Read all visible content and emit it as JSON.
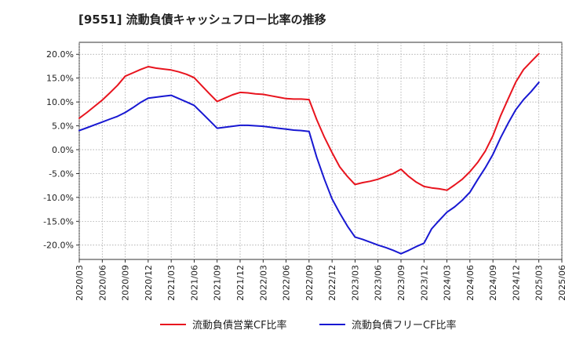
{
  "chart_data": {
    "type": "line",
    "title": "[9551]  流動負債キャッシュフロー比率の推移",
    "xlabel": "",
    "ylabel": "",
    "ylim": [
      -23,
      22.5
    ],
    "yticks": [
      20,
      15,
      10,
      5,
      0,
      -5,
      -10,
      -15,
      -20
    ],
    "ytick_labels": [
      "20.0%",
      "15.0%",
      "10.0%",
      "5.0%",
      "0.0%",
      "-5.0%",
      "-10.0%",
      "-15.0%",
      "-20.0%"
    ],
    "x_tick_labels": [
      "2020/03",
      "2020/06",
      "2020/09",
      "2020/12",
      "2021/03",
      "2021/06",
      "2021/09",
      "2021/12",
      "2022/03",
      "2022/06",
      "2022/09",
      "2022/12",
      "2023/03",
      "2023/06",
      "2023/09",
      "2023/12",
      "2024/03",
      "2024/06",
      "2024/09",
      "2024/12",
      "2025/03",
      "2025/06"
    ],
    "grid": true,
    "legend_position": "bottom",
    "series": [
      {
        "name": "流動負債営業CF比率",
        "color": "#e8141e",
        "x": [
          "2020/03",
          "2020/04",
          "2020/05",
          "2020/06",
          "2020/07",
          "2020/08",
          "2020/09",
          "2020/10",
          "2020/11",
          "2020/12",
          "2021/01",
          "2021/02",
          "2021/03",
          "2021/04",
          "2021/05",
          "2021/06",
          "2021/07",
          "2021/08",
          "2021/09",
          "2021/10",
          "2021/11",
          "2021/12",
          "2022/01",
          "2022/02",
          "2022/03",
          "2022/04",
          "2022/05",
          "2022/06",
          "2022/07",
          "2022/08",
          "2022/09",
          "2022/10",
          "2022/11",
          "2022/12",
          "2023/01",
          "2023/02",
          "2023/03",
          "2023/04",
          "2023/05",
          "2023/06",
          "2023/07",
          "2023/08",
          "2023/09",
          "2023/10",
          "2023/11",
          "2023/12",
          "2024/01",
          "2024/02",
          "2024/03",
          "2024/04",
          "2024/05",
          "2024/06",
          "2024/07",
          "2024/08",
          "2024/09",
          "2024/10",
          "2024/11",
          "2024/12",
          "2025/01",
          "2025/02",
          "2025/03"
        ],
        "values": [
          6.6,
          7.8,
          9.1,
          10.4,
          11.9,
          13.5,
          15.4,
          16.1,
          16.8,
          17.4,
          17.1,
          16.9,
          16.7,
          16.3,
          15.8,
          15.1,
          13.4,
          11.7,
          10.1,
          10.8,
          11.5,
          12.0,
          11.9,
          11.7,
          11.6,
          11.3,
          11.0,
          10.7,
          10.6,
          10.6,
          10.5,
          6.3,
          2.6,
          -0.6,
          -3.6,
          -5.6,
          -7.3,
          -6.9,
          -6.6,
          -6.2,
          -5.6,
          -5.0,
          -4.1,
          -5.6,
          -6.8,
          -7.7,
          -8.0,
          -8.2,
          -8.5,
          -7.4,
          -6.2,
          -4.6,
          -2.7,
          -0.3,
          2.9,
          7.1,
          10.7,
          14.2,
          16.8,
          18.5,
          20.1
        ]
      },
      {
        "name": "流動負債フリーCF比率",
        "color": "#1818d2",
        "x": [
          "2020/03",
          "2020/04",
          "2020/05",
          "2020/06",
          "2020/07",
          "2020/08",
          "2020/09",
          "2020/10",
          "2020/11",
          "2020/12",
          "2021/01",
          "2021/02",
          "2021/03",
          "2021/04",
          "2021/05",
          "2021/06",
          "2021/07",
          "2021/08",
          "2021/09",
          "2021/10",
          "2021/11",
          "2021/12",
          "2022/01",
          "2022/02",
          "2022/03",
          "2022/04",
          "2022/05",
          "2022/06",
          "2022/07",
          "2022/08",
          "2022/09",
          "2022/10",
          "2022/11",
          "2022/12",
          "2023/01",
          "2023/02",
          "2023/03",
          "2023/04",
          "2023/05",
          "2023/06",
          "2023/07",
          "2023/08",
          "2023/09",
          "2023/10",
          "2023/11",
          "2023/12",
          "2024/01",
          "2024/02",
          "2024/03",
          "2024/04",
          "2024/05",
          "2024/06",
          "2024/07",
          "2024/08",
          "2024/09",
          "2024/10",
          "2024/11",
          "2024/12",
          "2025/01",
          "2025/02",
          "2025/03"
        ],
        "values": [
          4.0,
          4.6,
          5.2,
          5.8,
          6.4,
          7.0,
          7.8,
          8.8,
          9.9,
          10.8,
          11.0,
          11.2,
          11.4,
          10.7,
          10.0,
          9.3,
          7.7,
          6.1,
          4.5,
          4.7,
          4.9,
          5.1,
          5.1,
          5.0,
          4.9,
          4.7,
          4.5,
          4.3,
          4.1,
          4.0,
          3.8,
          -1.6,
          -6.2,
          -10.3,
          -13.3,
          -16.0,
          -18.3,
          -18.8,
          -19.4,
          -20.0,
          -20.5,
          -21.1,
          -21.8,
          -21.1,
          -20.3,
          -19.6,
          -16.6,
          -14.8,
          -13.1,
          -12.0,
          -10.6,
          -8.9,
          -6.3,
          -3.8,
          -1.0,
          2.5,
          5.6,
          8.4,
          10.5,
          12.2,
          14.1
        ]
      }
    ]
  }
}
